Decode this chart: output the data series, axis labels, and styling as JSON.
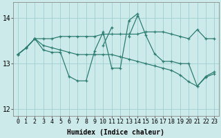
{
  "x": [
    0,
    1,
    2,
    3,
    4,
    5,
    6,
    7,
    8,
    9,
    10,
    11,
    12,
    13,
    14,
    15,
    16,
    17,
    18,
    19,
    20,
    21,
    22,
    23
  ],
  "line_zigzag": [
    13.2,
    13.35,
    13.55,
    13.3,
    13.25,
    13.25,
    12.72,
    12.62,
    12.62,
    13.28,
    13.7,
    12.9,
    12.9,
    13.95,
    14.1,
    13.62,
    13.22,
    13.05,
    13.05,
    13.0,
    13.0,
    12.5,
    12.72,
    12.82
  ],
  "line_upper": [
    13.2,
    13.35,
    13.55,
    13.55,
    13.55,
    13.6,
    13.6,
    13.6,
    13.6,
    13.6,
    13.65,
    13.65,
    13.65,
    13.65,
    13.65,
    13.7,
    13.7,
    13.7,
    13.65,
    13.6,
    13.55,
    13.75,
    13.55,
    13.55
  ],
  "line_mid": [
    13.2,
    13.35,
    13.55,
    13.4,
    13.35,
    13.3,
    13.25,
    13.2,
    13.2,
    13.2,
    13.2,
    13.2,
    13.15,
    13.1,
    13.05,
    13.0,
    12.95,
    12.9,
    12.85,
    12.75,
    12.6,
    12.5,
    12.7,
    12.78
  ],
  "line_spike": [
    13.2,
    13.35,
    13.55,
    null,
    null,
    null,
    null,
    null,
    null,
    null,
    13.4,
    13.8,
    null,
    13.6,
    14.05,
    null,
    null,
    null,
    null,
    null,
    null,
    null,
    null,
    null
  ],
  "bg_color": "#cdeaea",
  "grid_color": "#9ecece",
  "line_color": "#2d7d72",
  "ylim": [
    11.85,
    14.35
  ],
  "yticks": [
    12,
    13,
    14
  ],
  "xlim": [
    -0.5,
    23.5
  ],
  "xlabel": "Humidex (Indice chaleur)",
  "xlabel_fontsize": 7,
  "tick_fontsize": 6,
  "figsize": [
    3.2,
    2.0
  ],
  "dpi": 100
}
